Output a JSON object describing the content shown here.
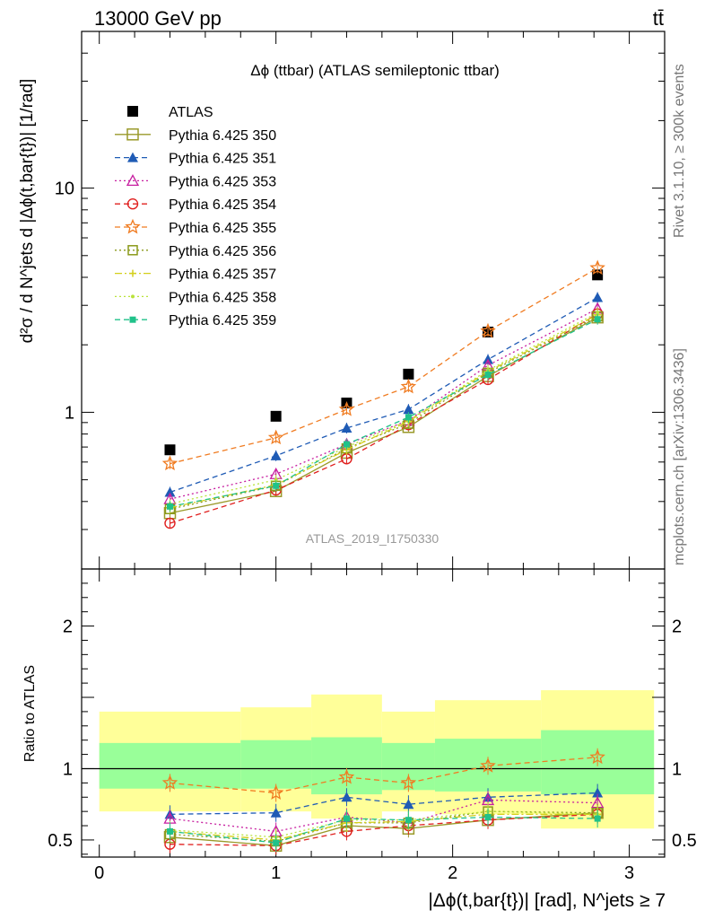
{
  "header": {
    "left": "13000 GeV pp",
    "right": "tt̄"
  },
  "side_labels": {
    "rivet": "Rivet 3.1.10, ≥ 300k events",
    "mcplots": "mcplots.cern.ch [arXiv:1306.3436]"
  },
  "watermark": "ATLAS_2019_I1750330",
  "colors": {
    "ATLAS": "#000000",
    "p350": "#9a9a2a",
    "p351": "#1f5bb5",
    "p353": "#c71fa0",
    "p354": "#e0201f",
    "p355": "#f07c22",
    "p356": "#8a9a1a",
    "p357": "#d4cf1a",
    "p358": "#b9e23a",
    "p359": "#20c28a",
    "band_yellow": "#ffff99",
    "band_green": "#99ff99"
  },
  "chart_data": [
    {
      "type": "line",
      "title": "Δϕ (ttbar) (ATLAS semileptonic ttbar)",
      "ylabel": "d²σ / d N^jets d |Δϕ(t,bar{t})| [1/rad]",
      "yscale": "log",
      "xlim": [
        -0.1,
        3.2
      ],
      "ylim": [
        0.2,
        50
      ],
      "y_ticks": [
        {
          "value": 1,
          "label": "1"
        },
        {
          "value": 10,
          "label": "10"
        }
      ],
      "x": [
        0.4,
        1.0,
        1.4,
        1.75,
        2.2,
        2.82
      ],
      "series": [
        {
          "name": "ATLAS",
          "marker": "square-filled",
          "values": [
            0.68,
            0.96,
            1.1,
            1.48,
            2.28,
            4.1
          ]
        },
        {
          "name": "Pythia 6.425 350",
          "marker": "square-open",
          "values": [
            0.355,
            0.445,
            0.66,
            0.86,
            1.45,
            2.65
          ]
        },
        {
          "name": "Pythia 6.425 351",
          "marker": "triangle-filled",
          "values": [
            0.44,
            0.64,
            0.85,
            1.03,
            1.72,
            3.25
          ]
        },
        {
          "name": "Pythia 6.425 353",
          "marker": "triangle-open",
          "values": [
            0.41,
            0.53,
            0.72,
            0.92,
            1.62,
            2.9
          ]
        },
        {
          "name": "Pythia 6.425 354",
          "marker": "circle-open",
          "values": [
            0.32,
            0.45,
            0.62,
            0.88,
            1.4,
            2.75
          ]
        },
        {
          "name": "Pythia 6.425 355",
          "marker": "star-open",
          "values": [
            0.59,
            0.77,
            1.03,
            1.3,
            2.3,
            4.4
          ]
        },
        {
          "name": "Pythia 6.425 356",
          "marker": "square-open-small",
          "values": [
            0.37,
            0.47,
            0.69,
            0.89,
            1.5,
            2.68
          ]
        },
        {
          "name": "Pythia 6.425 357",
          "marker": "cross",
          "values": [
            0.375,
            0.475,
            0.68,
            0.91,
            1.52,
            2.72
          ]
        },
        {
          "name": "Pythia 6.425 358",
          "marker": "dot",
          "values": [
            0.39,
            0.5,
            0.7,
            0.92,
            1.54,
            2.78
          ]
        },
        {
          "name": "Pythia 6.425 359",
          "marker": "square-filled-small",
          "values": [
            0.38,
            0.47,
            0.72,
            0.95,
            1.47,
            2.6
          ]
        }
      ]
    },
    {
      "type": "line",
      "title": "",
      "xlabel": "|Δϕ(t,bar{t})| [rad], N^jets ≥ 7",
      "ylabel": "Ratio to ATLAS",
      "xlim": [
        -0.1,
        3.2
      ],
      "ylim": [
        0.38,
        2.4
      ],
      "x_ticks": [
        {
          "value": 0,
          "label": "0"
        },
        {
          "value": 1,
          "label": "1"
        },
        {
          "value": 2,
          "label": "2"
        },
        {
          "value": 3,
          "label": "3"
        }
      ],
      "y_ticks": [
        {
          "value": 0.5,
          "label": "0.5"
        },
        {
          "value": 1,
          "label": "1"
        },
        {
          "value": 2,
          "label": "2"
        }
      ],
      "bins": [
        {
          "lo": 0.0,
          "hi": 0.8,
          "green": [
            0.86,
            1.18
          ],
          "yellow": [
            0.7,
            1.4
          ]
        },
        {
          "lo": 0.8,
          "hi": 1.2,
          "green": [
            0.86,
            1.2
          ],
          "yellow": [
            0.7,
            1.43
          ]
        },
        {
          "lo": 1.2,
          "hi": 1.6,
          "green": [
            0.82,
            1.22
          ],
          "yellow": [
            0.65,
            1.52
          ]
        },
        {
          "lo": 1.6,
          "hi": 1.9,
          "green": [
            0.85,
            1.18
          ],
          "yellow": [
            0.7,
            1.4
          ]
        },
        {
          "lo": 1.9,
          "hi": 2.5,
          "green": [
            0.84,
            1.21
          ],
          "yellow": [
            0.68,
            1.48
          ]
        },
        {
          "lo": 2.5,
          "hi": 3.14,
          "green": [
            0.82,
            1.27
          ],
          "yellow": [
            0.58,
            1.55
          ]
        }
      ],
      "x": [
        0.4,
        1.0,
        1.4,
        1.75,
        2.2,
        2.82
      ],
      "series": [
        {
          "name": "Pythia 6.425 350",
          "values": [
            0.52,
            0.46,
            0.6,
            0.58,
            0.64,
            0.69
          ]
        },
        {
          "name": "Pythia 6.425 351",
          "values": [
            0.68,
            0.69,
            0.8,
            0.75,
            0.8,
            0.83
          ]
        },
        {
          "name": "Pythia 6.425 353",
          "values": [
            0.65,
            0.56,
            0.66,
            0.62,
            0.78,
            0.76
          ]
        },
        {
          "name": "Pythia 6.425 354",
          "values": [
            0.47,
            0.46,
            0.56,
            0.6,
            0.64,
            0.68
          ]
        },
        {
          "name": "Pythia 6.425 355",
          "values": [
            0.9,
            0.83,
            0.94,
            0.9,
            1.02,
            1.08
          ]
        },
        {
          "name": "Pythia 6.425 356",
          "values": [
            0.54,
            0.49,
            0.62,
            0.62,
            0.7,
            0.69
          ]
        },
        {
          "name": "Pythia 6.425 357",
          "values": [
            0.56,
            0.5,
            0.62,
            0.63,
            0.68,
            0.68
          ]
        },
        {
          "name": "Pythia 6.425 358",
          "values": [
            0.57,
            0.52,
            0.64,
            0.64,
            0.7,
            0.68
          ]
        },
        {
          "name": "Pythia 6.425 359",
          "values": [
            0.56,
            0.48,
            0.65,
            0.64,
            0.66,
            0.65
          ]
        }
      ]
    }
  ]
}
